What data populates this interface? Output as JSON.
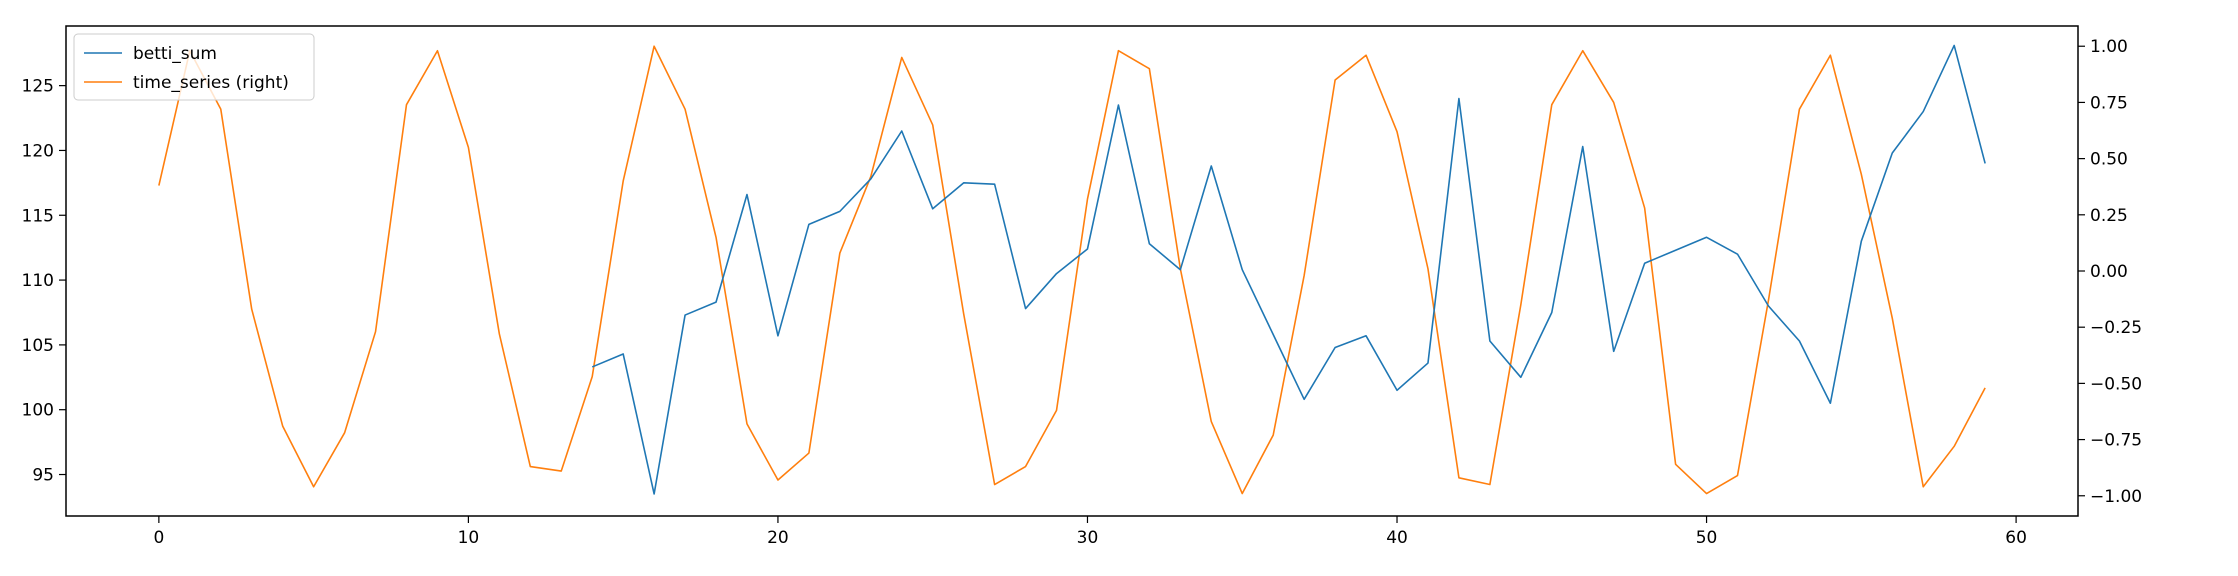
{
  "chart_data": {
    "type": "line",
    "title": "",
    "xlabel": "",
    "ylabel": "",
    "xlim": [
      -3,
      62
    ],
    "ylim": [
      91.8,
      129.6
    ],
    "y2lim": [
      -1.09,
      1.09
    ],
    "x_ticks": [
      0,
      10,
      20,
      30,
      40,
      50,
      60
    ],
    "y_ticks": [
      95,
      100,
      105,
      110,
      115,
      120,
      125
    ],
    "y2_ticks": [
      -1.0,
      -0.75,
      -0.5,
      -0.25,
      0.0,
      0.25,
      0.5,
      0.75,
      1.0
    ],
    "y2_tick_labels": [
      "−1.00",
      "−0.75",
      "−0.50",
      "−0.25",
      "0.00",
      "0.25",
      "0.50",
      "0.75",
      "1.00"
    ],
    "legend_position": "upper-left",
    "grid": false,
    "series": [
      {
        "name": "betti_sum",
        "axis": "left",
        "color": "#1f77b4",
        "x": [
          14,
          15,
          16,
          17,
          18,
          19,
          20,
          21,
          22,
          23,
          24,
          25,
          26,
          27,
          28,
          29,
          30,
          31,
          32,
          33,
          34,
          35,
          36,
          37,
          38,
          39,
          40,
          41,
          42,
          43,
          44,
          45,
          46,
          47,
          48,
          49,
          50,
          51,
          52,
          53,
          54,
          55,
          56,
          57,
          58,
          59
        ],
        "values": [
          103.3,
          104.3,
          93.5,
          107.3,
          108.3,
          116.6,
          105.7,
          114.3,
          115.3,
          117.8,
          121.5,
          115.5,
          117.5,
          117.4,
          107.8,
          110.5,
          112.4,
          123.5,
          112.8,
          110.8,
          118.8,
          110.8,
          105.8,
          100.8,
          104.8,
          105.7,
          101.5,
          103.6,
          124.0,
          105.3,
          102.5,
          107.5,
          120.3,
          104.5,
          111.3,
          112.3,
          113.3,
          112.0,
          108.0,
          105.3,
          100.5,
          113.0,
          119.8,
          123.0,
          128.1,
          119.0
        ]
      },
      {
        "name": "time_series (right)",
        "axis": "right",
        "color": "#ff7f0e",
        "x": [
          0,
          1,
          2,
          3,
          4,
          5,
          6,
          7,
          8,
          9,
          10,
          11,
          12,
          13,
          14,
          15,
          16,
          17,
          18,
          19,
          20,
          21,
          22,
          23,
          24,
          25,
          26,
          27,
          28,
          29,
          30,
          31,
          32,
          33,
          34,
          35,
          36,
          37,
          38,
          39,
          40,
          41,
          42,
          43,
          44,
          45,
          46,
          47,
          48,
          49,
          50,
          51,
          52,
          53,
          54,
          55,
          56,
          57,
          58,
          59
        ],
        "values": [
          0.38,
          0.98,
          0.72,
          -0.17,
          -0.69,
          -0.96,
          -0.72,
          -0.27,
          0.74,
          0.98,
          0.55,
          -0.28,
          -0.87,
          -0.89,
          -0.47,
          0.4,
          1.0,
          0.72,
          0.15,
          -0.68,
          -0.93,
          -0.81,
          0.08,
          0.42,
          0.95,
          0.65,
          -0.19,
          -0.95,
          -0.87,
          -0.62,
          0.32,
          0.98,
          0.9,
          0.01,
          -0.67,
          -0.99,
          -0.73,
          -0.02,
          0.85,
          0.96,
          0.62,
          0.01,
          -0.92,
          -0.95,
          -0.15,
          0.74,
          0.98,
          0.75,
          0.28,
          -0.86,
          -0.99,
          -0.91,
          -0.13,
          0.72,
          0.96,
          0.43,
          -0.21,
          -0.96,
          -0.78,
          -0.52
        ]
      }
    ]
  }
}
